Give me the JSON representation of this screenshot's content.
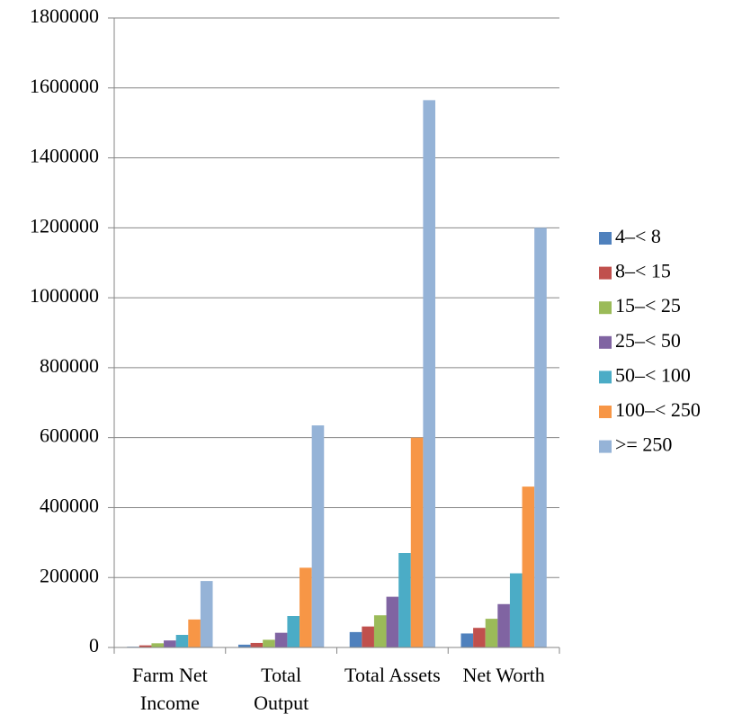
{
  "chart_data": {
    "type": "bar",
    "categories": [
      "Farm Net Income",
      "Total Output",
      "Total Assets",
      "Net Worth"
    ],
    "series": [
      {
        "name": "4–< 8",
        "color": "#4F81BD",
        "values": [
          2000,
          8000,
          44000,
          40000
        ]
      },
      {
        "name": "8–< 15",
        "color": "#C0504D",
        "values": [
          6000,
          13000,
          60000,
          56000
        ]
      },
      {
        "name": "15–< 25",
        "color": "#9BBB59",
        "values": [
          12000,
          22000,
          92000,
          82000
        ]
      },
      {
        "name": "25–< 50",
        "color": "#8064A2",
        "values": [
          20000,
          42000,
          145000,
          124000
        ]
      },
      {
        "name": "50–< 100",
        "color": "#4BACC6",
        "values": [
          36000,
          90000,
          270000,
          212000
        ]
      },
      {
        "name": "100–< 250",
        "color": "#F79646",
        "values": [
          80000,
          228000,
          600000,
          460000
        ]
      },
      {
        "name": ">= 250",
        "color": "#95B3D7",
        "values": [
          190000,
          635000,
          1565000,
          1200000
        ]
      }
    ],
    "ylim": [
      0,
      1800000
    ],
    "yticks": [
      0,
      200000,
      400000,
      600000,
      800000,
      1000000,
      1200000,
      1400000,
      1600000,
      1800000
    ],
    "grid": true,
    "legend": "right"
  }
}
